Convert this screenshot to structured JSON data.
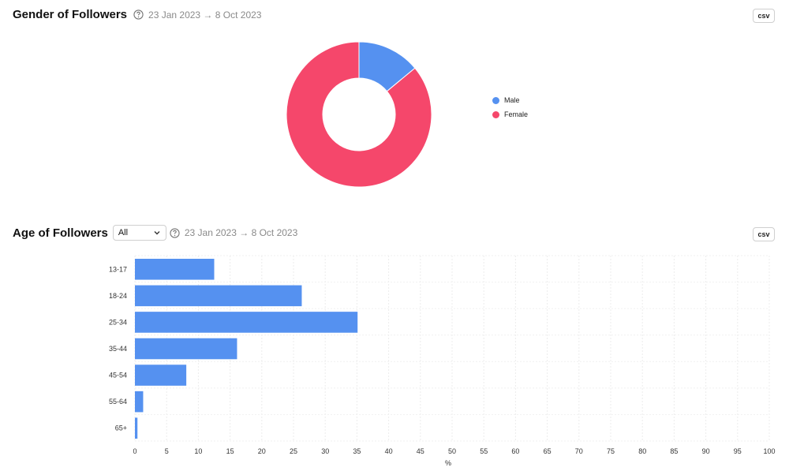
{
  "gender": {
    "title": "Gender of Followers",
    "date_range": "23 Jan 2023 → 8 Oct 2023",
    "csv_label": "csv",
    "help_icon": "question-circle-icon"
  },
  "age": {
    "title": "Age of Followers",
    "filter_value": "All",
    "date_range": "23 Jan 2023 → 8 Oct 2023",
    "csv_label": "csv",
    "help_icon": "question-circle-icon",
    "dropdown_icon": "chevron-down-icon"
  },
  "colors": {
    "male": "#5591f0",
    "female": "#f5476b",
    "bar": "#5591f0"
  },
  "chart_data": [
    {
      "type": "pie",
      "labels": [
        "Male",
        "Female"
      ],
      "values": [
        14,
        86
      ],
      "colors": [
        "#5591f0",
        "#f5476b"
      ],
      "legend_position": "right"
    },
    {
      "type": "bar",
      "orientation": "horizontal",
      "categories": [
        "13-17",
        "18-24",
        "25-34",
        "35-44",
        "45-54",
        "55-64",
        "65+"
      ],
      "values": [
        12.5,
        26.3,
        35.1,
        16.1,
        8.1,
        1.3,
        0.4
      ],
      "xlabel": "%",
      "xlim": [
        0,
        100
      ],
      "xticks": [
        "0",
        "5",
        "10",
        "15",
        "20",
        "25",
        "30",
        "35",
        "40",
        "45",
        "50",
        "55",
        "60",
        "65",
        "70",
        "75",
        "80",
        "85",
        "90",
        "95",
        "100"
      ],
      "grid": true
    }
  ]
}
